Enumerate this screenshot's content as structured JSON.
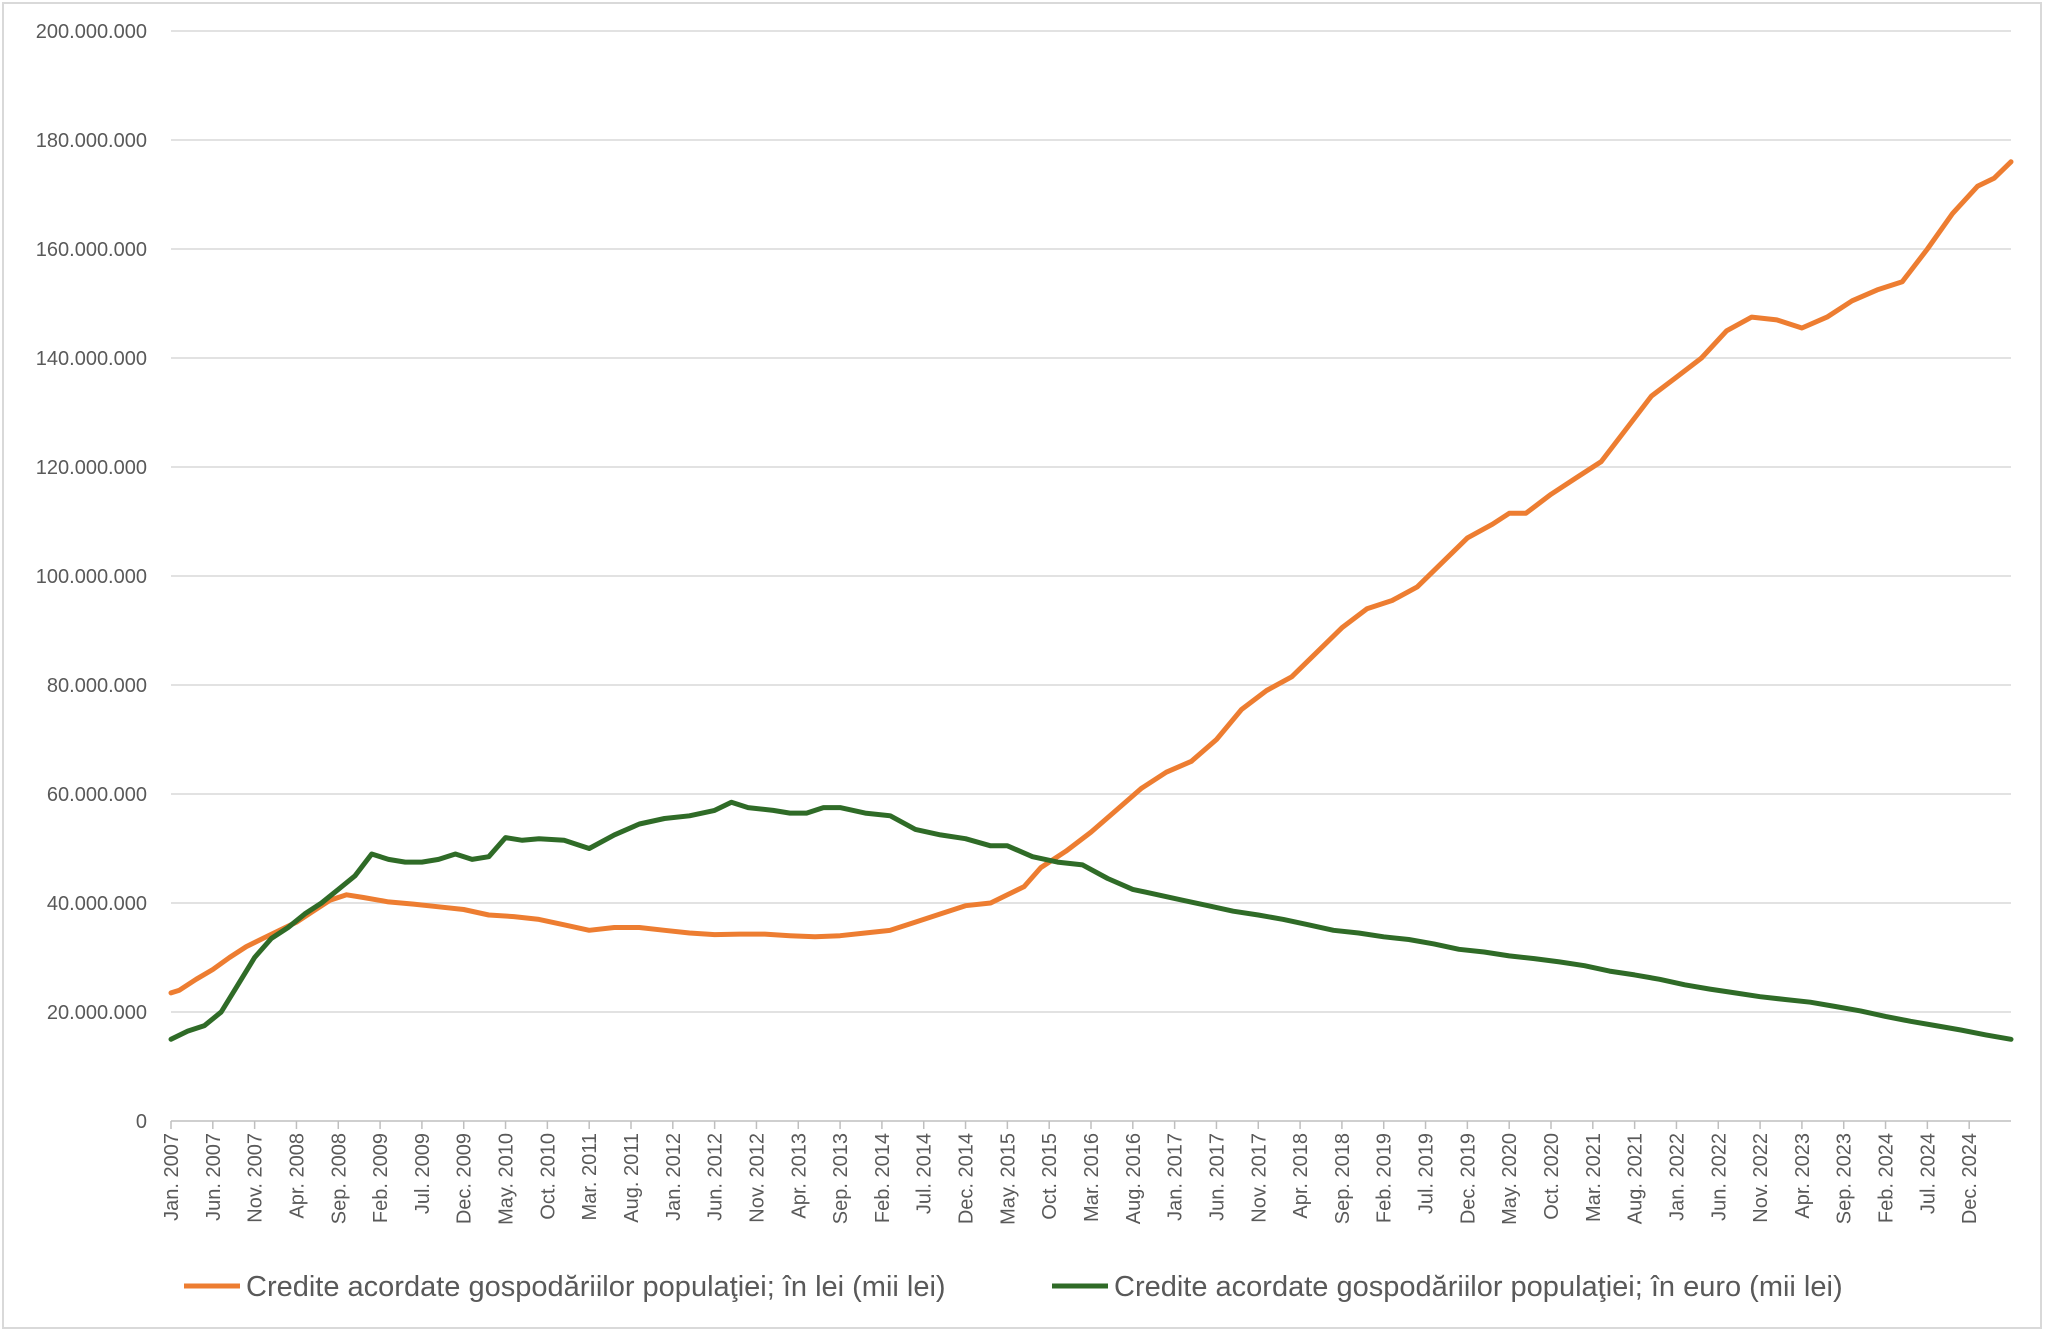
{
  "chart_data": {
    "type": "line",
    "title": "",
    "xlabel": "",
    "ylabel": "",
    "ylim": [
      0,
      200000000
    ],
    "yticks": [
      0,
      20000000,
      40000000,
      60000000,
      80000000,
      100000000,
      120000000,
      140000000,
      160000000,
      180000000,
      200000000
    ],
    "ytick_labels": [
      "0",
      "20.000.000",
      "40.000.000",
      "60.000.000",
      "80.000.000",
      "100.000.000",
      "120.000.000",
      "140.000.000",
      "160.000.000",
      "180.000.000",
      "200.000.000"
    ],
    "x_range": [
      "2007-01",
      "2025-05"
    ],
    "xtick_labels": [
      {
        "label": "Jan. 2007",
        "month": "2007-01"
      },
      {
        "label": "Jun. 2007",
        "month": "2007-06"
      },
      {
        "label": "Nov. 2007",
        "month": "2007-11"
      },
      {
        "label": "Apr. 2008",
        "month": "2008-04"
      },
      {
        "label": "Sep. 2008",
        "month": "2008-09"
      },
      {
        "label": "Feb. 2009",
        "month": "2009-02"
      },
      {
        "label": "Jul. 2009",
        "month": "2009-07"
      },
      {
        "label": "Dec. 2009",
        "month": "2009-12"
      },
      {
        "label": "May. 2010",
        "month": "2010-05"
      },
      {
        "label": "Oct. 2010",
        "month": "2010-10"
      },
      {
        "label": "Mar. 2011",
        "month": "2011-03"
      },
      {
        "label": "Aug. 2011",
        "month": "2011-08"
      },
      {
        "label": "Jan. 2012",
        "month": "2012-01"
      },
      {
        "label": "Jun. 2012",
        "month": "2012-06"
      },
      {
        "label": "Nov. 2012",
        "month": "2012-11"
      },
      {
        "label": "Apr. 2013",
        "month": "2013-04"
      },
      {
        "label": "Sep. 2013",
        "month": "2013-09"
      },
      {
        "label": "Feb. 2014",
        "month": "2014-02"
      },
      {
        "label": "Jul. 2014",
        "month": "2014-07"
      },
      {
        "label": "Dec. 2014",
        "month": "2014-12"
      },
      {
        "label": "May. 2015",
        "month": "2015-05"
      },
      {
        "label": "Oct. 2015",
        "month": "2015-10"
      },
      {
        "label": "Mar. 2016",
        "month": "2016-03"
      },
      {
        "label": "Aug. 2016",
        "month": "2016-08"
      },
      {
        "label": "Jan. 2017",
        "month": "2017-01"
      },
      {
        "label": "Jun. 2017",
        "month": "2017-06"
      },
      {
        "label": "Nov. 2017",
        "month": "2017-11"
      },
      {
        "label": "Apr. 2018",
        "month": "2018-04"
      },
      {
        "label": "Sep. 2018",
        "month": "2018-09"
      },
      {
        "label": "Feb. 2019",
        "month": "2019-02"
      },
      {
        "label": "Jul. 2019",
        "month": "2019-07"
      },
      {
        "label": "Dec. 2019",
        "month": "2019-12"
      },
      {
        "label": "May. 2020",
        "month": "2020-05"
      },
      {
        "label": "Oct. 2020",
        "month": "2020-10"
      },
      {
        "label": "Mar. 2021",
        "month": "2021-03"
      },
      {
        "label": "Aug. 2021",
        "month": "2021-08"
      },
      {
        "label": "Jan. 2022",
        "month": "2022-01"
      },
      {
        "label": "Jun. 2022",
        "month": "2022-06"
      },
      {
        "label": "Nov. 2022",
        "month": "2022-11"
      },
      {
        "label": "Apr. 2023",
        "month": "2023-04"
      },
      {
        "label": "Sep. 2023",
        "month": "2023-09"
      },
      {
        "label": "Feb. 2024",
        "month": "2024-02"
      },
      {
        "label": "Jul. 2024",
        "month": "2024-07"
      },
      {
        "label": "Dec. 2024",
        "month": "2024-12"
      }
    ],
    "grid": true,
    "legend_position": "bottom",
    "series": [
      {
        "name": "Credite acordate gospodăriilor populaţiei; în lei (mii lei)",
        "color": "#ed7d31",
        "points": [
          [
            "2007-01",
            23500000
          ],
          [
            "2007-02",
            24000000
          ],
          [
            "2007-04",
            26000000
          ],
          [
            "2007-06",
            27800000
          ],
          [
            "2007-08",
            30000000
          ],
          [
            "2007-10",
            32000000
          ],
          [
            "2007-12",
            33500000
          ],
          [
            "2008-02",
            35000000
          ],
          [
            "2008-04",
            36500000
          ],
          [
            "2008-06",
            38500000
          ],
          [
            "2008-08",
            40500000
          ],
          [
            "2008-10",
            41500000
          ],
          [
            "2008-12",
            41000000
          ],
          [
            "2009-03",
            40200000
          ],
          [
            "2009-06",
            39800000
          ],
          [
            "2009-09",
            39300000
          ],
          [
            "2009-12",
            38800000
          ],
          [
            "2010-03",
            37800000
          ],
          [
            "2010-06",
            37500000
          ],
          [
            "2010-09",
            37000000
          ],
          [
            "2010-12",
            36000000
          ],
          [
            "2011-03",
            35000000
          ],
          [
            "2011-06",
            35500000
          ],
          [
            "2011-09",
            35500000
          ],
          [
            "2011-12",
            35000000
          ],
          [
            "2012-03",
            34500000
          ],
          [
            "2012-06",
            34200000
          ],
          [
            "2012-09",
            34300000
          ],
          [
            "2012-12",
            34300000
          ],
          [
            "2013-03",
            34000000
          ],
          [
            "2013-06",
            33800000
          ],
          [
            "2013-09",
            34000000
          ],
          [
            "2013-12",
            34500000
          ],
          [
            "2014-03",
            35000000
          ],
          [
            "2014-06",
            36500000
          ],
          [
            "2014-09",
            38000000
          ],
          [
            "2014-12",
            39500000
          ],
          [
            "2015-03",
            40000000
          ],
          [
            "2015-05",
            41500000
          ],
          [
            "2015-07",
            43000000
          ],
          [
            "2015-09",
            46500000
          ],
          [
            "2015-12",
            49500000
          ],
          [
            "2016-03",
            53000000
          ],
          [
            "2016-06",
            57000000
          ],
          [
            "2016-09",
            61000000
          ],
          [
            "2016-12",
            64000000
          ],
          [
            "2017-03",
            66000000
          ],
          [
            "2017-06",
            70000000
          ],
          [
            "2017-09",
            75500000
          ],
          [
            "2017-12",
            79000000
          ],
          [
            "2018-03",
            81500000
          ],
          [
            "2018-06",
            86000000
          ],
          [
            "2018-09",
            90500000
          ],
          [
            "2018-12",
            94000000
          ],
          [
            "2019-03",
            95500000
          ],
          [
            "2019-06",
            98000000
          ],
          [
            "2019-09",
            102500000
          ],
          [
            "2019-12",
            107000000
          ],
          [
            "2020-03",
            109500000
          ],
          [
            "2020-05",
            111500000
          ],
          [
            "2020-07",
            111500000
          ],
          [
            "2020-10",
            115000000
          ],
          [
            "2021-01",
            118000000
          ],
          [
            "2021-04",
            121000000
          ],
          [
            "2021-07",
            127000000
          ],
          [
            "2021-10",
            133000000
          ],
          [
            "2022-01",
            136500000
          ],
          [
            "2022-04",
            140000000
          ],
          [
            "2022-07",
            145000000
          ],
          [
            "2022-10",
            147500000
          ],
          [
            "2023-01",
            147000000
          ],
          [
            "2023-04",
            145500000
          ],
          [
            "2023-07",
            147500000
          ],
          [
            "2023-10",
            150500000
          ],
          [
            "2024-01",
            152500000
          ],
          [
            "2024-04",
            154000000
          ],
          [
            "2024-07",
            160000000
          ],
          [
            "2024-10",
            166500000
          ],
          [
            "2025-01",
            171500000
          ],
          [
            "2025-03",
            173000000
          ],
          [
            "2025-05",
            176000000
          ]
        ]
      },
      {
        "name": "Credite acordate gospodăriilor populaţiei; în euro (mii lei)",
        "color": "#2f6b27",
        "points": [
          [
            "2007-01",
            15000000
          ],
          [
            "2007-03",
            16500000
          ],
          [
            "2007-05",
            17500000
          ],
          [
            "2007-07",
            20000000
          ],
          [
            "2007-09",
            25000000
          ],
          [
            "2007-11",
            30000000
          ],
          [
            "2008-01",
            33500000
          ],
          [
            "2008-03",
            35500000
          ],
          [
            "2008-05",
            38000000
          ],
          [
            "2008-07",
            40000000
          ],
          [
            "2008-09",
            42500000
          ],
          [
            "2008-11",
            45000000
          ],
          [
            "2009-01",
            49000000
          ],
          [
            "2009-03",
            48000000
          ],
          [
            "2009-05",
            47500000
          ],
          [
            "2009-07",
            47500000
          ],
          [
            "2009-09",
            48000000
          ],
          [
            "2009-11",
            49000000
          ],
          [
            "2010-01",
            48000000
          ],
          [
            "2010-03",
            48500000
          ],
          [
            "2010-05",
            52000000
          ],
          [
            "2010-07",
            51500000
          ],
          [
            "2010-09",
            51800000
          ],
          [
            "2010-12",
            51500000
          ],
          [
            "2011-03",
            50000000
          ],
          [
            "2011-06",
            52500000
          ],
          [
            "2011-09",
            54500000
          ],
          [
            "2011-12",
            55500000
          ],
          [
            "2012-03",
            56000000
          ],
          [
            "2012-06",
            57000000
          ],
          [
            "2012-08",
            58500000
          ],
          [
            "2012-10",
            57500000
          ],
          [
            "2013-01",
            57000000
          ],
          [
            "2013-03",
            56500000
          ],
          [
            "2013-05",
            56500000
          ],
          [
            "2013-07",
            57500000
          ],
          [
            "2013-09",
            57500000
          ],
          [
            "2013-12",
            56500000
          ],
          [
            "2014-03",
            56000000
          ],
          [
            "2014-06",
            53500000
          ],
          [
            "2014-09",
            52500000
          ],
          [
            "2014-12",
            51800000
          ],
          [
            "2015-03",
            50500000
          ],
          [
            "2015-05",
            50500000
          ],
          [
            "2015-08",
            48500000
          ],
          [
            "2015-11",
            47500000
          ],
          [
            "2016-02",
            47000000
          ],
          [
            "2016-05",
            44500000
          ],
          [
            "2016-08",
            42500000
          ],
          [
            "2016-11",
            41500000
          ],
          [
            "2017-02",
            40500000
          ],
          [
            "2017-05",
            39500000
          ],
          [
            "2017-08",
            38500000
          ],
          [
            "2017-11",
            37800000
          ],
          [
            "2018-02",
            37000000
          ],
          [
            "2018-05",
            36000000
          ],
          [
            "2018-08",
            35000000
          ],
          [
            "2018-11",
            34500000
          ],
          [
            "2019-02",
            33800000
          ],
          [
            "2019-05",
            33300000
          ],
          [
            "2019-08",
            32500000
          ],
          [
            "2019-11",
            31500000
          ],
          [
            "2020-02",
            31000000
          ],
          [
            "2020-05",
            30300000
          ],
          [
            "2020-08",
            29800000
          ],
          [
            "2020-11",
            29200000
          ],
          [
            "2021-02",
            28500000
          ],
          [
            "2021-05",
            27500000
          ],
          [
            "2021-08",
            26800000
          ],
          [
            "2021-11",
            26000000
          ],
          [
            "2022-02",
            25000000
          ],
          [
            "2022-05",
            24200000
          ],
          [
            "2022-08",
            23500000
          ],
          [
            "2022-11",
            22800000
          ],
          [
            "2023-02",
            22300000
          ],
          [
            "2023-05",
            21800000
          ],
          [
            "2023-08",
            21000000
          ],
          [
            "2023-11",
            20200000
          ],
          [
            "2024-02",
            19200000
          ],
          [
            "2024-05",
            18300000
          ],
          [
            "2024-08",
            17500000
          ],
          [
            "2024-11",
            16700000
          ],
          [
            "2025-02",
            15800000
          ],
          [
            "2025-05",
            15000000
          ]
        ]
      }
    ]
  }
}
